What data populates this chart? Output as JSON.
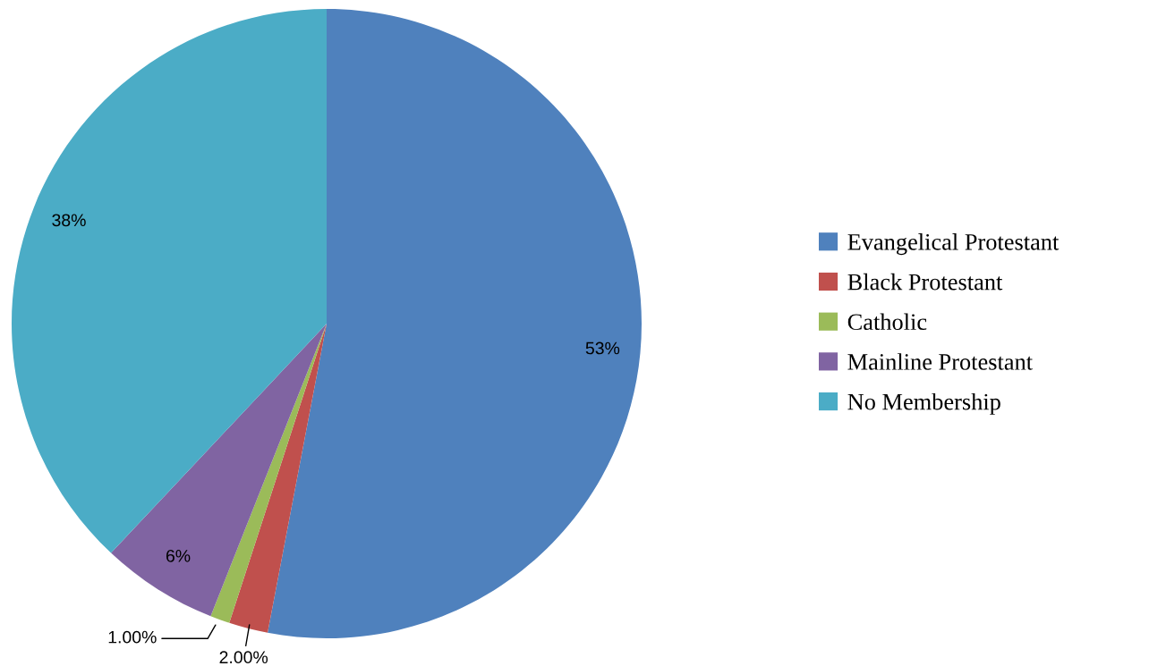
{
  "chart_data": {
    "type": "pie",
    "categories": [
      "Evangelical Protestant",
      "Black Protestant",
      "Catholic",
      "Mainline Protestant",
      "No Membership"
    ],
    "values": [
      53,
      2,
      1,
      6,
      38
    ],
    "colors": [
      "#4f81bd",
      "#c0504d",
      "#9bbb59",
      "#8064a2",
      "#4bacc6"
    ],
    "value_labels": [
      "53%",
      "2.00%",
      "1.00%",
      "6%",
      "38%"
    ],
    "legend": "right"
  }
}
